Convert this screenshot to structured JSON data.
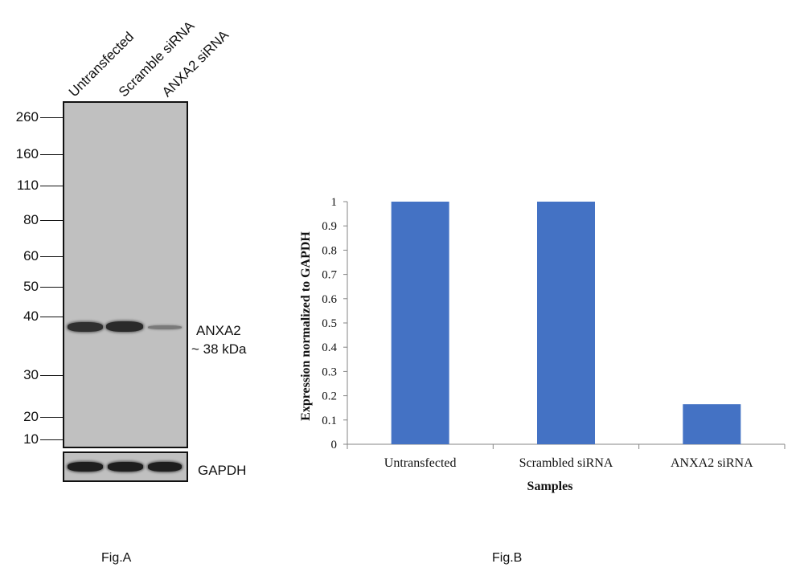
{
  "figA": {
    "lane_labels": [
      "Untransfected",
      "Scramble siRNA",
      "ANXA2 siRNA"
    ],
    "mw_markers": [
      "260",
      "160",
      "110",
      "80",
      "60",
      "50",
      "40",
      "30",
      "20",
      "10"
    ],
    "band_label": "ANXA2",
    "band_size": "~ 38 kDa",
    "control_label": "GAPDH",
    "caption": "Fig.A"
  },
  "figB": {
    "caption": "Fig.B"
  },
  "chart_data": {
    "type": "bar",
    "categories": [
      "Untransfected",
      "Scrambled siRNA",
      "ANXA2 siRNA"
    ],
    "values": [
      1.0,
      1.0,
      0.165
    ],
    "xlabel": "Samples",
    "ylabel": "Expression normalized to GAPDH",
    "ylim": [
      0,
      1
    ],
    "yticks": [
      "0",
      "0.1",
      "0.2",
      "0.3",
      "0.4",
      "0.5",
      "0.6",
      "0.7",
      "0.8",
      "0.9",
      "1"
    ],
    "bar_color": "#4472c4",
    "grid": false
  }
}
